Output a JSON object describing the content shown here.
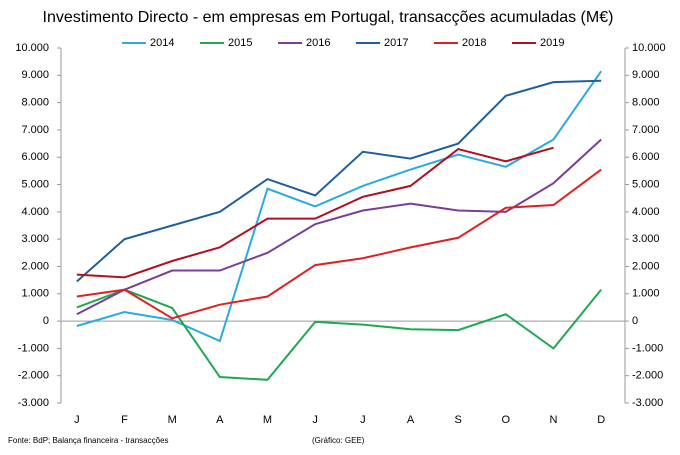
{
  "chart_data": {
    "type": "line",
    "title": "Investimento Directo - em empresas em Portugal, transacções acumuladas (M€)",
    "categories": [
      "J",
      "F",
      "M",
      "A",
      "M",
      "J",
      "J",
      "A",
      "S",
      "O",
      "N",
      "D"
    ],
    "series": [
      {
        "name": "2014",
        "color": "#2aa9e0",
        "values": [
          -180,
          330,
          40,
          -730,
          4850,
          4200,
          4950,
          5550,
          6100,
          5650,
          6650,
          9150
        ]
      },
      {
        "name": "2015",
        "color": "#1fa84f",
        "values": [
          500,
          1150,
          480,
          -2050,
          -2150,
          -30,
          -130,
          -300,
          -330,
          250,
          -1000,
          1150
        ]
      },
      {
        "name": "2016",
        "color": "#7a3d9a",
        "values": [
          250,
          1150,
          1850,
          1850,
          2500,
          3550,
          4050,
          4300,
          4050,
          4000,
          5050,
          6650
        ]
      },
      {
        "name": "2017",
        "color": "#1f5f9e",
        "values": [
          1450,
          3000,
          3500,
          4000,
          5200,
          4600,
          6200,
          5950,
          6500,
          8250,
          8750,
          8800
        ]
      },
      {
        "name": "2018",
        "color": "#e02020",
        "values": [
          900,
          1150,
          100,
          600,
          900,
          2050,
          2300,
          2700,
          3050,
          4150,
          4250,
          5550
        ]
      },
      {
        "name": "2019",
        "color": "#b01020",
        "values": [
          1700,
          1600,
          2200,
          2700,
          3750,
          3750,
          4550,
          4950,
          6300,
          5850,
          6350,
          null
        ]
      }
    ],
    "ylim": [
      -3000,
      10000
    ],
    "yticks": [
      {
        "value": -3000,
        "label": "-3.000"
      },
      {
        "value": -2000,
        "label": "-2.000"
      },
      {
        "value": -1000,
        "label": "-1.000"
      },
      0,
      {
        "value": 1000,
        "label": "1.000"
      },
      {
        "value": 2000,
        "label": "2.000"
      },
      {
        "value": 3000,
        "label": "3.000"
      },
      {
        "value": 4000,
        "label": "4.000"
      },
      {
        "value": 5000,
        "label": "5.000"
      },
      {
        "value": 6000,
        "label": "6.000"
      },
      {
        "value": 7000,
        "label": "7.000"
      },
      {
        "value": 8000,
        "label": "8.000"
      },
      {
        "value": 9000,
        "label": "9.000"
      },
      {
        "value": 10000,
        "label": "10.000"
      }
    ],
    "y2lim": [
      -3000,
      10000
    ],
    "y2ticks": [
      {
        "value": -3000,
        "label": "-3.000"
      },
      {
        "value": -2000,
        "label": "-2.000"
      },
      {
        "value": -1000,
        "label": "-1.000"
      },
      0,
      {
        "value": 1000,
        "label": "1.000"
      },
      {
        "value": 2000,
        "label": "2.000"
      },
      {
        "value": 3000,
        "label": "3.000"
      },
      {
        "value": 4000,
        "label": "4.000"
      },
      {
        "value": 5000,
        "label": "5.000"
      },
      {
        "value": 6000,
        "label": "6.000"
      },
      {
        "value": 7000,
        "label": "7.000"
      },
      {
        "value": 8000,
        "label": "8.000"
      },
      {
        "value": 9000,
        "label": "9.000"
      },
      {
        "value": 10000,
        "label": "10.000"
      }
    ],
    "source": "Fonte: BdP; Balança financeira - transacções",
    "credit": "(Gráfico: GEE)"
  }
}
